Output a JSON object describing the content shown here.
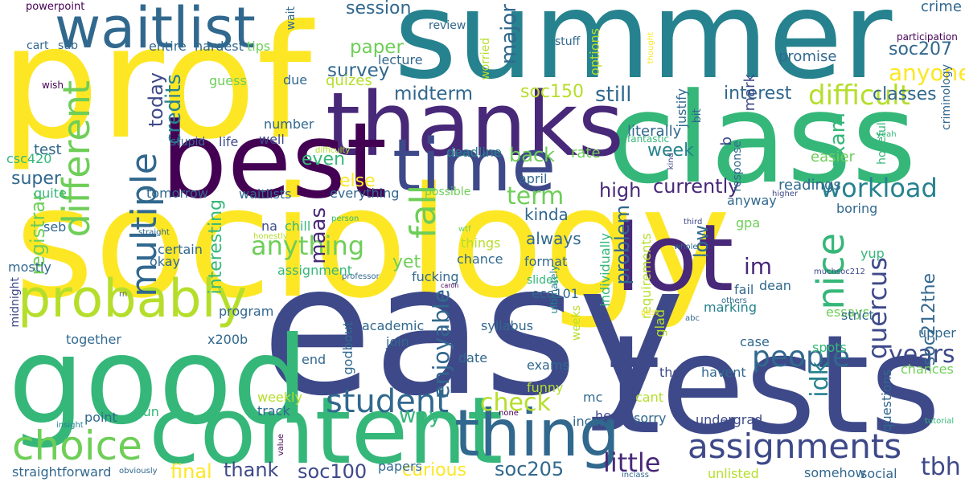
{
  "colors": {
    "background": "#ffffff",
    "palette": [
      "#fde725",
      "#b5de2b",
      "#6ece58",
      "#35b779",
      "#1f9e89",
      "#26828e",
      "#31688e",
      "#3e4989",
      "#482878",
      "#440154"
    ]
  },
  "words": [
    "sociology",
    "easy",
    "summer",
    "prof",
    "tests",
    "class",
    "good",
    "content",
    "thanks",
    "best",
    "time",
    "lot",
    "waitlist",
    "thing",
    "probably",
    "choice",
    "assignments",
    "student",
    "people",
    "workload",
    "difficult",
    "anything",
    "survey",
    "paper",
    "midterm",
    "soc150",
    "still",
    "interest",
    "soc207",
    "anyone",
    "classes",
    "years",
    "week",
    "little",
    "soc100",
    "soc205",
    "tbh",
    "final",
    "thank",
    "curious",
    "multiple",
    "credits",
    "today",
    "different",
    "registrar",
    "term",
    "fall",
    "kinda",
    "always",
    "yet",
    "high",
    "currently",
    "problem",
    "low",
    "im",
    "nice",
    "quercus",
    "soc212the",
    "idk",
    "check",
    "enjoyable",
    "way",
    "interesting",
    "maas",
    "even",
    "else",
    "back",
    "session",
    "review",
    "major",
    "lecture",
    "stuff",
    "justify",
    "mark",
    "promise",
    "crime",
    "participation",
    "criminology",
    "thought",
    "options",
    "worried",
    "tips",
    "hardest",
    "entire",
    "sub",
    "cart",
    "wish",
    "powerpoint",
    "wait",
    "quizes",
    "guess",
    "due",
    "number",
    "well",
    "life",
    "stupid",
    "test",
    "csc420",
    "super",
    "quite",
    "tomorrow",
    "waitlists",
    "everything",
    "possible",
    "april",
    "deadline",
    "difficulty",
    "fantastic",
    "literally",
    "rate",
    "exam",
    "easier",
    "yeah",
    "hopefully",
    "response",
    "b",
    "bit",
    "kind",
    "readings",
    "anyway",
    "higher",
    "boring",
    "yup",
    "gpa",
    "third",
    "whole",
    "ultimately",
    "individually",
    "requirements",
    "format",
    "slides",
    "chance",
    "fucking",
    "eco101",
    "caron",
    "wtf",
    "things",
    "certain",
    "okay",
    "assignment",
    "na",
    "chill",
    "person",
    "honestly",
    "straight",
    "seb",
    "mostly",
    "midnight",
    "rn",
    "professor",
    "muchsoc212",
    "others",
    "fail",
    "dean",
    "marking",
    "essays",
    "strict",
    "upper",
    "past",
    "abc",
    "glad",
    "case",
    "weeks",
    "syllabus",
    "academic",
    "join",
    "godbout",
    "date",
    "exams",
    "end",
    "program",
    "x200b",
    "together",
    "spots",
    "tho",
    "havent",
    "chances",
    "questions",
    "funny",
    "mc",
    "head",
    "cant",
    "sorry",
    "incase",
    "undergrad",
    "tutorial",
    "weekly",
    "track",
    "fun",
    "point",
    "insight",
    "none",
    "straightforward",
    "obviously",
    "value",
    "papers",
    "inclass",
    "unlisted",
    "somehow",
    "social"
  ]
}
